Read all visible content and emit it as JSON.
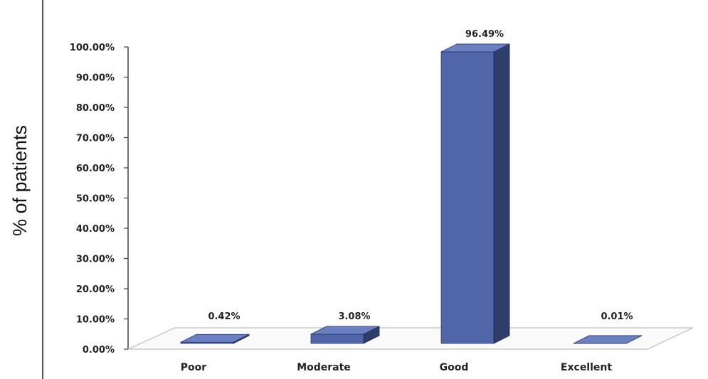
{
  "chart_data": {
    "type": "bar",
    "title": "",
    "xlabel": "",
    "ylabel": "% of patients",
    "categories": [
      "Poor",
      "Moderate",
      "Good",
      "Excellent"
    ],
    "values": [
      0.42,
      3.08,
      96.49,
      0.01
    ],
    "data_labels": [
      "0.42%",
      "3.08%",
      "96.49%",
      "0.01%"
    ],
    "ylim": [
      0,
      100
    ],
    "yticks": [
      "0.00%",
      "10.00%",
      "20.00%",
      "30.00%",
      "40.00%",
      "50.00%",
      "60.00%",
      "70.00%",
      "80.00%",
      "90.00%",
      "100.00%"
    ],
    "grid": false,
    "legend": "none",
    "colors": {
      "bar_front": "#5166a8",
      "bar_side": "#2f3d6b",
      "bar_top": "#6b80c2",
      "floor_stroke": "#c8c8c8",
      "frame": "#4a4f8a"
    }
  }
}
